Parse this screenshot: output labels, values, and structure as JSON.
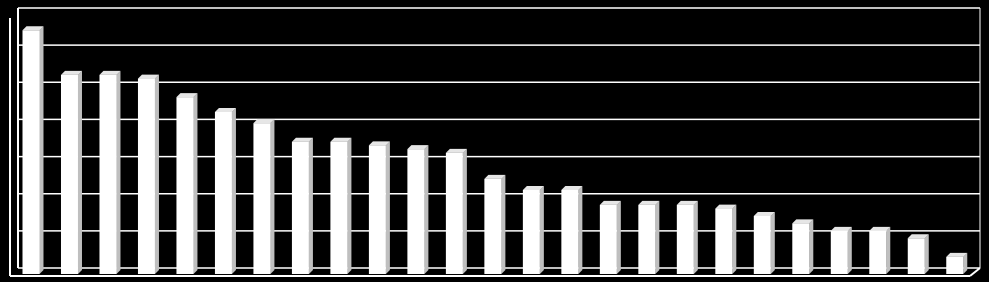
{
  "chart_data": {
    "type": "bar",
    "categories": [
      null,
      null,
      null,
      null,
      null,
      null,
      null,
      null,
      null,
      null,
      null,
      null,
      null,
      null,
      null,
      null,
      null,
      null,
      null,
      null,
      null,
      null,
      null,
      null,
      null
    ],
    "values": [
      6.4,
      5.2,
      5.2,
      5.1,
      4.6,
      4.2,
      3.9,
      3.4,
      3.4,
      3.3,
      3.2,
      3.1,
      2.4,
      2.1,
      2.1,
      1.7,
      1.7,
      1.7,
      1.6,
      1.4,
      1.2,
      1.0,
      1.0,
      0.8,
      0.3
    ],
    "color": "#ffffff",
    "ylim": [
      0,
      7
    ],
    "yticks": [
      0,
      1,
      2,
      3,
      4,
      5,
      6,
      7
    ],
    "grid": true
  }
}
